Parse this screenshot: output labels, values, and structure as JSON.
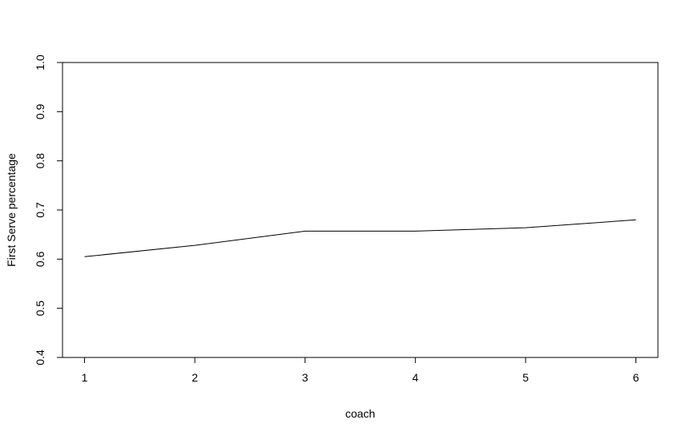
{
  "chart_data": {
    "type": "line",
    "title": "",
    "xlabel": "coach",
    "ylabel": "First Serve percentage",
    "x": [
      1,
      2,
      3,
      4,
      5,
      6
    ],
    "series": [
      {
        "values": [
          0.605,
          0.628,
          0.657,
          0.657,
          0.664,
          0.68
        ]
      }
    ],
    "xlim": [
      0.8,
      6.2
    ],
    "ylim": [
      0.4,
      1.0
    ],
    "xticks": [
      "1",
      "2",
      "3",
      "4",
      "5",
      "6"
    ],
    "yticks": [
      "0.4",
      "0.5",
      "0.6",
      "0.7",
      "0.8",
      "0.9",
      "1.0"
    ],
    "grid": false,
    "line_color": "#000000"
  }
}
